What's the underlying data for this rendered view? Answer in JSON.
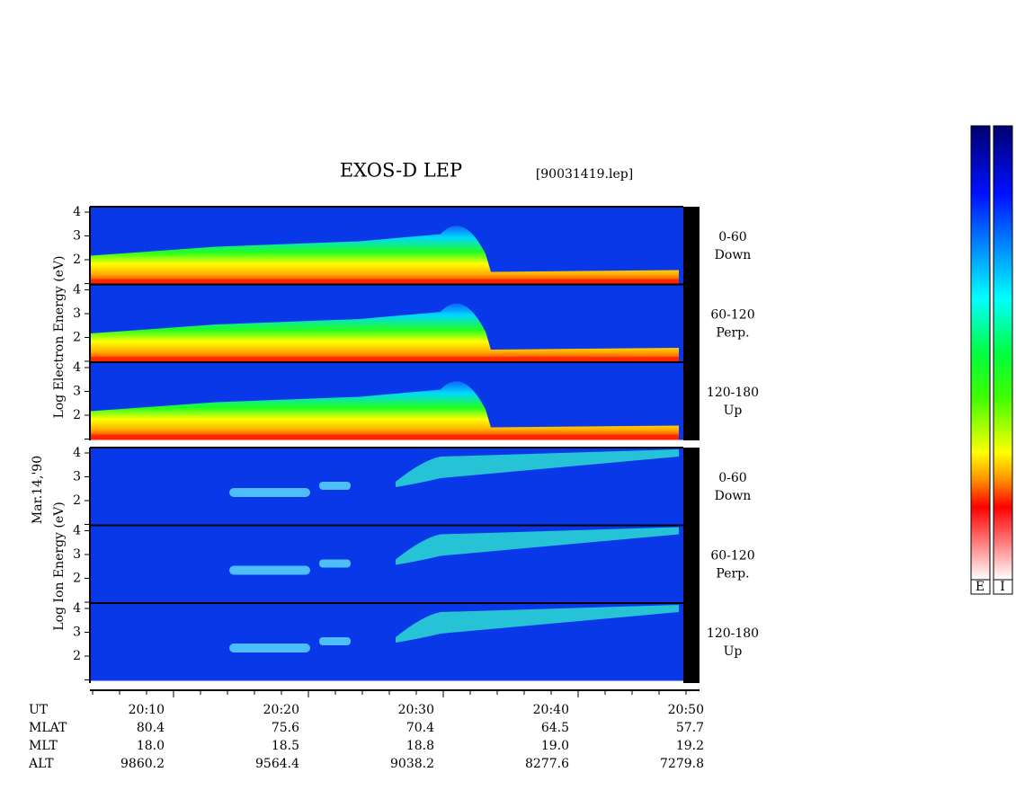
{
  "header": {
    "title": "EXOS-D LEP",
    "file": "[90031419.lep]"
  },
  "left_labels": {
    "electron": "Log Electron Energy (eV)",
    "date": "Mar.14,'90",
    "ion": "Log Ion Energy (eV)"
  },
  "panels": [
    {
      "species": "electron",
      "pitch": "0-60",
      "direction": "Down",
      "yticks": [
        4,
        3,
        2
      ]
    },
    {
      "species": "electron",
      "pitch": "60-120",
      "direction": "Perp.",
      "yticks": [
        4,
        3,
        2
      ]
    },
    {
      "species": "electron",
      "pitch": "120-180",
      "direction": "Up",
      "yticks": [
        4,
        3,
        2
      ]
    },
    {
      "species": "ion",
      "pitch": "0-60",
      "direction": "Down",
      "yticks": [
        4,
        3,
        2
      ]
    },
    {
      "species": "ion",
      "pitch": "60-120",
      "direction": "Perp.",
      "yticks": [
        4,
        3,
        2
      ]
    },
    {
      "species": "ion",
      "pitch": "120-180",
      "direction": "Up",
      "yticks": [
        4,
        3,
        2
      ]
    }
  ],
  "ephemeris": {
    "labels": [
      "UT",
      "MLAT",
      "MLT",
      "ALT"
    ],
    "rows": [
      [
        "20:10",
        "20:20",
        "20:30",
        "20:40",
        "20:50"
      ],
      [
        "80.4",
        "75.6",
        "70.4",
        "64.5",
        "57.7"
      ],
      [
        "18.0",
        "18.5",
        "18.8",
        "19.0",
        "19.2"
      ],
      [
        "9860.2",
        "9564.4",
        "9038.2",
        "8277.6",
        "7279.8"
      ]
    ]
  },
  "colorbar": {
    "labels": [
      "E",
      "I"
    ]
  }
}
